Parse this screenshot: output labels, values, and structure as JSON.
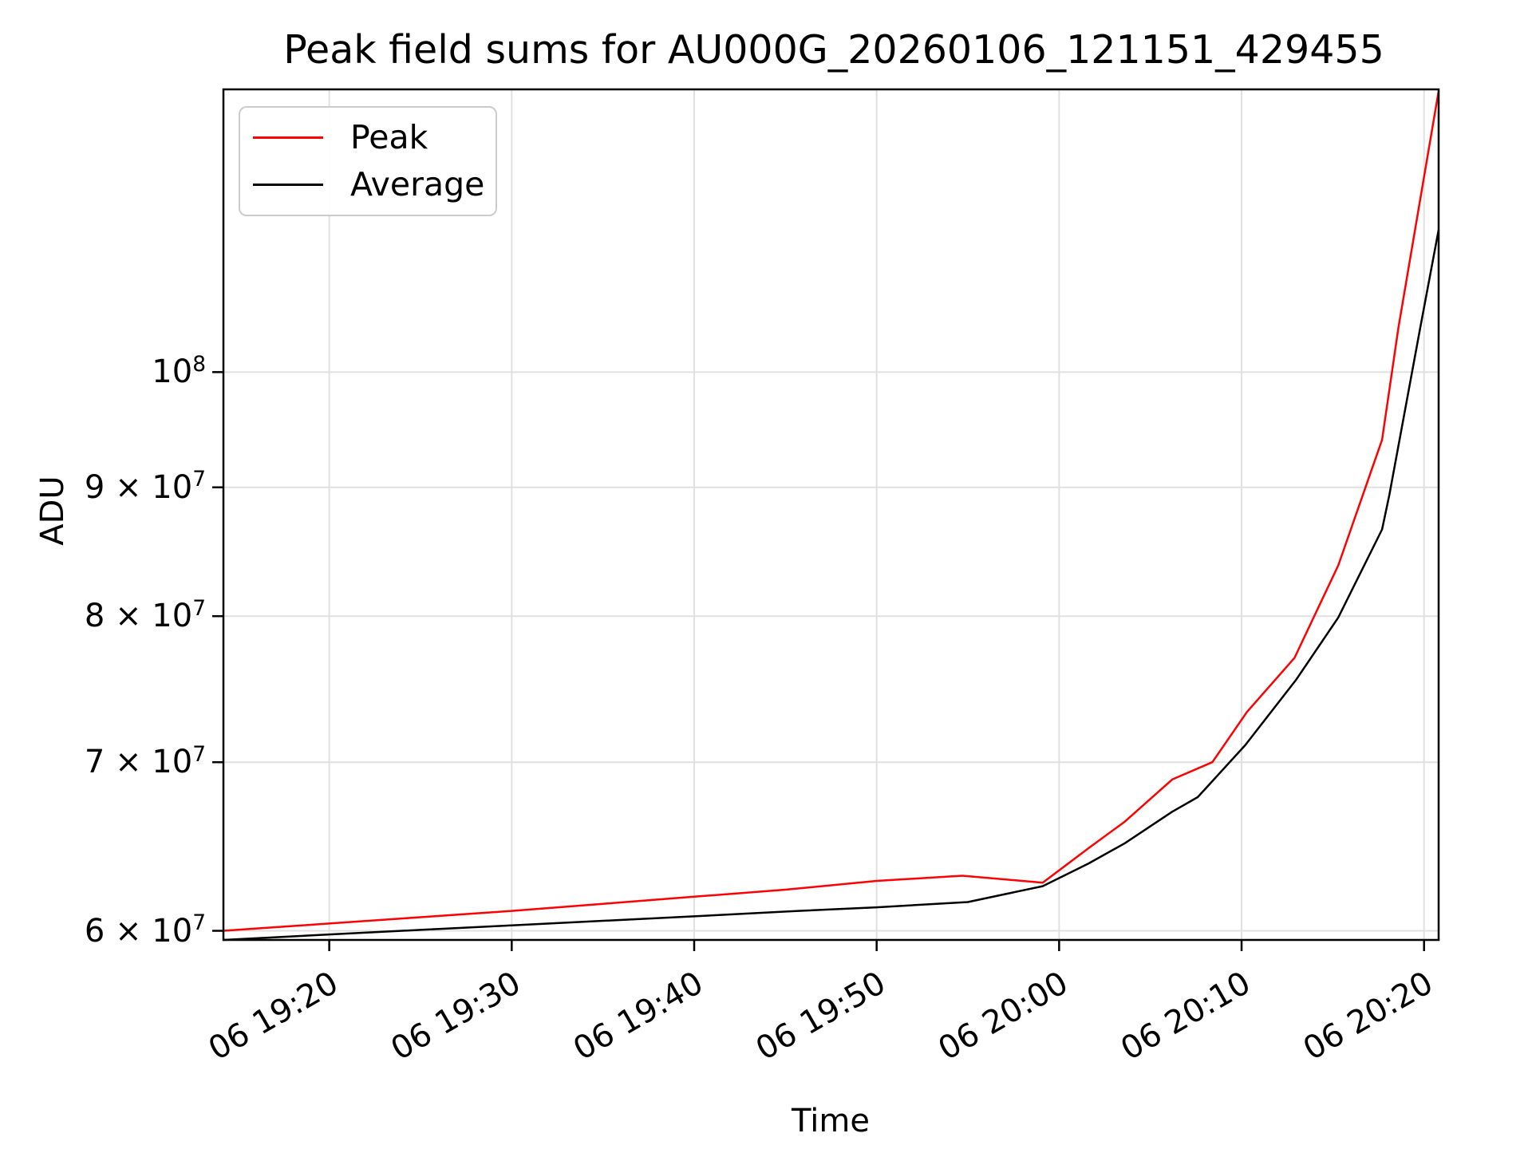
{
  "chart_data": {
    "type": "line",
    "title": "Peak field sums for AU000G_20260106_121151_429455",
    "xlabel": "Time",
    "ylabel": "ADU",
    "yscale": "log",
    "grid": true,
    "x_unit_minutes_after": "19:00",
    "xlim": [
      14.2,
      80.8
    ],
    "ylim": [
      59500000,
      129500000
    ],
    "x_ticks": [
      {
        "t": 20,
        "label": "06 19:20"
      },
      {
        "t": 30,
        "label": "06 19:30"
      },
      {
        "t": 40,
        "label": "06 19:40"
      },
      {
        "t": 50,
        "label": "06 19:50"
      },
      {
        "t": 60,
        "label": "06 20:00"
      },
      {
        "t": 70,
        "label": "06 20:10"
      },
      {
        "t": 80,
        "label": "06 20:20"
      }
    ],
    "y_ticks": [
      {
        "value": 60000000,
        "mantissa": "6 × 10",
        "exponent": "7"
      },
      {
        "value": 70000000,
        "mantissa": "7 × 10",
        "exponent": "7"
      },
      {
        "value": 80000000,
        "mantissa": "8 × 10",
        "exponent": "7"
      },
      {
        "value": 90000000,
        "mantissa": "9 × 10",
        "exponent": "7"
      },
      {
        "value": 100000000,
        "mantissa": "10",
        "exponent": "8"
      }
    ],
    "legend": {
      "position": "upper-left",
      "entries": [
        {
          "name": "Peak",
          "color": "#ff0000"
        },
        {
          "name": "Average",
          "color": "#000000"
        }
      ]
    },
    "series": [
      {
        "name": "Peak",
        "color": "#ff0000",
        "points": [
          [
            14.2,
            60000000
          ],
          [
            20,
            60400000
          ],
          [
            25,
            60750000
          ],
          [
            30,
            61100000
          ],
          [
            35,
            61500000
          ],
          [
            40,
            61900000
          ],
          [
            45,
            62300000
          ],
          [
            50,
            62800000
          ],
          [
            54.7,
            63100000
          ],
          [
            59.1,
            62700000
          ],
          [
            61.6,
            64700000
          ],
          [
            63.6,
            66300000
          ],
          [
            66.2,
            68900000
          ],
          [
            68.4,
            70000000
          ],
          [
            70.3,
            73300000
          ],
          [
            72.9,
            77000000
          ],
          [
            75.3,
            83800000
          ],
          [
            77.7,
            94000000
          ],
          [
            78.6,
            104200000
          ],
          [
            80.8,
            129300000
          ]
        ]
      },
      {
        "name": "Average",
        "color": "#000000",
        "points": [
          [
            14.2,
            59500000
          ],
          [
            20,
            59800000
          ],
          [
            25,
            60050000
          ],
          [
            30,
            60300000
          ],
          [
            35,
            60550000
          ],
          [
            40,
            60800000
          ],
          [
            45.7,
            61100000
          ],
          [
            50,
            61300000
          ],
          [
            55,
            61600000
          ],
          [
            59.1,
            62500000
          ],
          [
            61.6,
            63800000
          ],
          [
            63.6,
            65000000
          ],
          [
            66.2,
            66900000
          ],
          [
            67.6,
            67800000
          ],
          [
            70.2,
            71100000
          ],
          [
            73,
            75500000
          ],
          [
            75.3,
            79900000
          ],
          [
            77.7,
            86600000
          ],
          [
            78.1,
            89400000
          ],
          [
            79.8,
            104200000
          ],
          [
            80.8,
            113900000
          ]
        ]
      }
    ],
    "colors": {
      "grid": "#e0e0e0",
      "spine": "#000000",
      "background": "#ffffff"
    }
  }
}
